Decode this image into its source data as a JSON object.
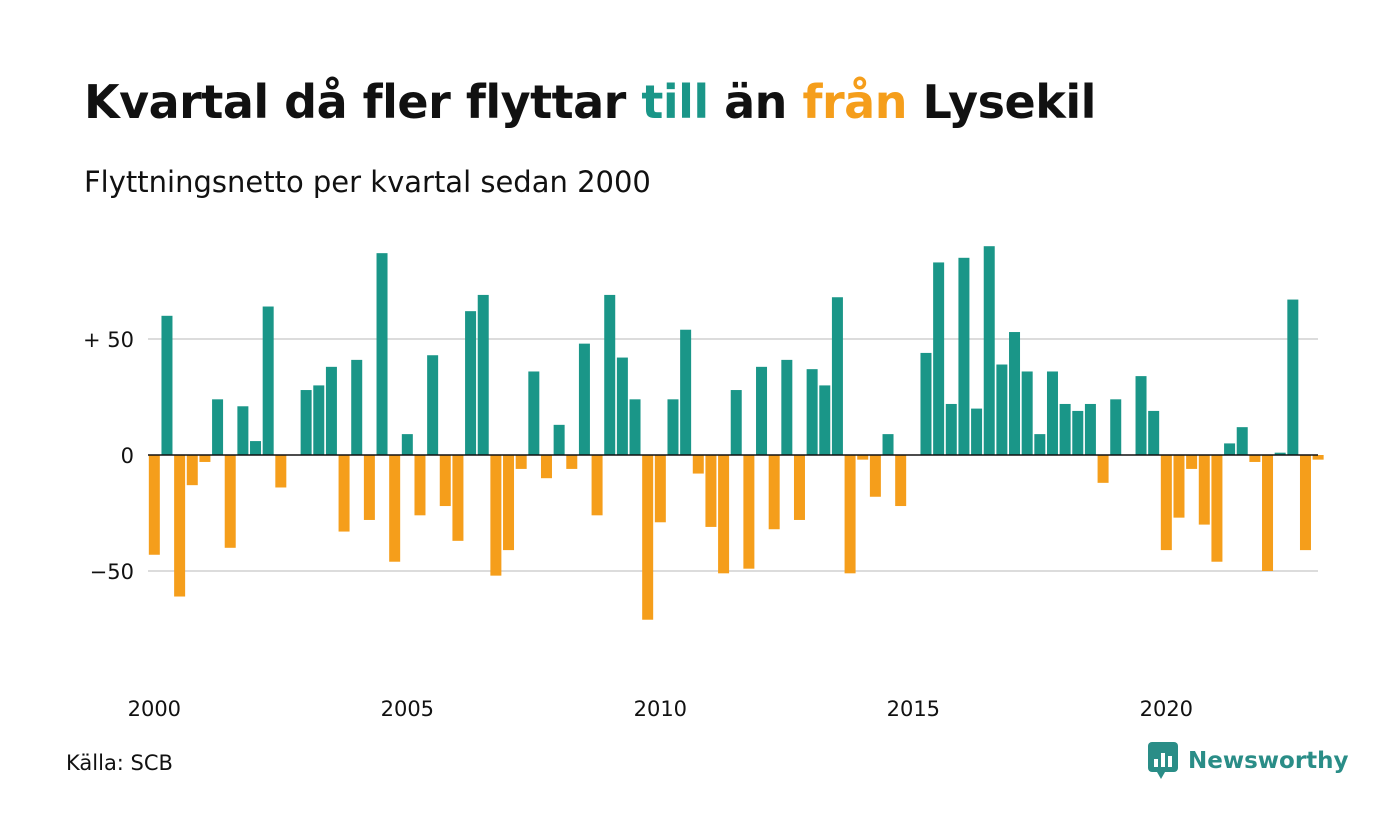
{
  "header": {
    "title_parts": [
      {
        "text": "Kvartal då fler flyttar ",
        "color": "#111111"
      },
      {
        "text": "till",
        "color": "#1a9688"
      },
      {
        "text": " än ",
        "color": "#111111"
      },
      {
        "text": "från",
        "color": "#f59e1b"
      },
      {
        "text": " Lysekil",
        "color": "#111111"
      }
    ],
    "subtitle": "Flyttningsnetto per kvartal sedan 2000"
  },
  "footer": {
    "source": "Källa: SCB",
    "brand": "Newsworthy",
    "brand_icon": "newsworthy-logo-icon"
  },
  "colors": {
    "positive": "#1a9688",
    "negative": "#f59e1b",
    "grid": "#dcdcdc",
    "zero_line": "#111111"
  },
  "chart_data": {
    "type": "bar",
    "title": "",
    "xlabel": "",
    "ylabel": "",
    "start": "2000 Q1",
    "grid": true,
    "ylim": [
      -85,
      95
    ],
    "yticks": [
      {
        "value": 50,
        "label": "+ 50"
      },
      {
        "value": 0,
        "label": "0"
      },
      {
        "value": -50,
        "label": "−50"
      }
    ],
    "xticks": [
      "2000",
      "2005",
      "2010",
      "2015",
      "2020"
    ],
    "categories": [
      "2000 Q1",
      "2000 Q2",
      "2000 Q3",
      "2000 Q4",
      "2001 Q1",
      "2001 Q2",
      "2001 Q3",
      "2001 Q4",
      "2002 Q1",
      "2002 Q2",
      "2002 Q3",
      "2002 Q4",
      "2003 Q1",
      "2003 Q2",
      "2003 Q3",
      "2003 Q4",
      "2004 Q1",
      "2004 Q2",
      "2004 Q3",
      "2004 Q4",
      "2005 Q1",
      "2005 Q2",
      "2005 Q3",
      "2005 Q4",
      "2006 Q1",
      "2006 Q2",
      "2006 Q3",
      "2006 Q4",
      "2007 Q1",
      "2007 Q2",
      "2007 Q3",
      "2007 Q4",
      "2008 Q1",
      "2008 Q2",
      "2008 Q3",
      "2008 Q4",
      "2009 Q1",
      "2009 Q2",
      "2009 Q3",
      "2009 Q4",
      "2010 Q1",
      "2010 Q2",
      "2010 Q3",
      "2010 Q4",
      "2011 Q1",
      "2011 Q2",
      "2011 Q3",
      "2011 Q4",
      "2012 Q1",
      "2012 Q2",
      "2012 Q3",
      "2012 Q4",
      "2013 Q1",
      "2013 Q2",
      "2013 Q3",
      "2013 Q4",
      "2014 Q1",
      "2014 Q2",
      "2014 Q3",
      "2014 Q4",
      "2015 Q1",
      "2015 Q2",
      "2015 Q3",
      "2015 Q4",
      "2016 Q1",
      "2016 Q2",
      "2016 Q3",
      "2016 Q4",
      "2017 Q1",
      "2017 Q2",
      "2017 Q3",
      "2017 Q4",
      "2018 Q1",
      "2018 Q2",
      "2018 Q3",
      "2018 Q4",
      "2019 Q1",
      "2019 Q2",
      "2019 Q3",
      "2019 Q4",
      "2020 Q1",
      "2020 Q2",
      "2020 Q3",
      "2020 Q4",
      "2021 Q1",
      "2021 Q2",
      "2021 Q3",
      "2021 Q4",
      "2022 Q1",
      "2022 Q2",
      "2022 Q3",
      "2022 Q4",
      "2023 Q1"
    ],
    "values": [
      -43,
      60,
      -61,
      -13,
      -3,
      24,
      -40,
      21,
      6,
      64,
      -14,
      0,
      28,
      30,
      38,
      -33,
      41,
      -28,
      87,
      -46,
      9,
      -26,
      43,
      -22,
      -37,
      62,
      69,
      -52,
      -41,
      -6,
      36,
      -10,
      13,
      -6,
      48,
      -26,
      69,
      42,
      24,
      -71,
      -29,
      24,
      54,
      -8,
      -31,
      -51,
      28,
      -49,
      38,
      -32,
      41,
      -28,
      37,
      30,
      68,
      -51,
      -2,
      -18,
      9,
      -22,
      0,
      44,
      83,
      22,
      85,
      20,
      90,
      39,
      53,
      36,
      9,
      36,
      22,
      19,
      22,
      -12,
      24,
      0,
      34,
      19,
      -41,
      -27,
      -6,
      -30,
      -46,
      5,
      12,
      -3,
      -50,
      1,
      67,
      -41,
      -2
    ]
  }
}
